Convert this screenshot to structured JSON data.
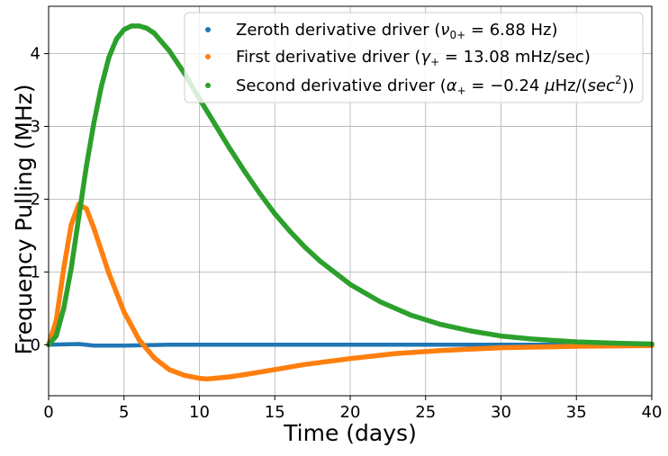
{
  "chart_data": {
    "type": "scatter",
    "xlabel": "Time (days)",
    "ylabel": "Frequency Pulling (MHz)",
    "xlim": [
      0,
      40
    ],
    "ylim": [
      -0.7,
      4.65
    ],
    "grid": true,
    "legend_position": "top-right",
    "x_ticks": [
      "0",
      "5",
      "10",
      "15",
      "20",
      "25",
      "30",
      "35",
      "40"
    ],
    "y_ticks": [
      "0",
      "1",
      "2",
      "3",
      "4"
    ],
    "series": [
      {
        "name": "Zeroth derivative driver (ν0+ = 6.88 Hz)",
        "legend_parts": [
          "Zeroth derivative driver (",
          "ν",
          "0+",
          " = 6.88 Hz)"
        ],
        "color": "#1f77b4",
        "x": [
          0,
          2,
          3,
          5,
          8,
          12,
          16,
          20,
          25,
          30,
          35,
          40
        ],
        "y": [
          0,
          0.01,
          -0.01,
          -0.01,
          0,
          0,
          0,
          0,
          0,
          0,
          0,
          0
        ]
      },
      {
        "name": "First derivative driver (γ+ = 13.08 mHz/sec)",
        "legend_parts": [
          "First derivative driver (",
          "γ",
          "+",
          " = 13.08 mHz/sec)"
        ],
        "color": "#ff7f0e",
        "x": [
          0,
          0.5,
          1,
          1.5,
          2,
          2.5,
          3,
          4,
          5,
          6,
          7,
          8,
          9,
          10,
          10.5,
          11,
          12,
          13,
          15,
          17,
          20,
          23,
          26,
          30,
          35,
          40
        ],
        "y": [
          0,
          0.33,
          1.05,
          1.65,
          1.93,
          1.87,
          1.6,
          0.98,
          0.45,
          0.07,
          -0.18,
          -0.34,
          -0.42,
          -0.46,
          -0.47,
          -0.46,
          -0.44,
          -0.41,
          -0.34,
          -0.27,
          -0.19,
          -0.12,
          -0.08,
          -0.04,
          -0.02,
          -0.01
        ]
      },
      {
        "name": "Second derivative driver (α+ = −0.24 μHz/(sec2))",
        "legend_parts": [
          "Second derivative driver (",
          "α",
          "+",
          " = −0.24 ",
          "μ",
          "Hz/(",
          "sec",
          "2",
          "))"
        ],
        "color": "#2ca02c",
        "x": [
          0,
          0.5,
          1,
          1.5,
          2,
          2.5,
          3,
          3.5,
          4,
          4.5,
          5,
          5.5,
          6,
          6.5,
          7,
          8,
          9,
          10,
          11,
          12,
          13,
          14,
          15,
          16,
          17,
          18,
          20,
          22,
          24,
          26,
          28,
          30,
          32,
          35,
          38,
          40
        ],
        "y": [
          0,
          0.12,
          0.5,
          1.05,
          1.75,
          2.45,
          3.05,
          3.55,
          3.95,
          4.2,
          4.33,
          4.38,
          4.38,
          4.35,
          4.28,
          4.04,
          3.73,
          3.38,
          3.04,
          2.7,
          2.38,
          2.08,
          1.8,
          1.56,
          1.34,
          1.15,
          0.83,
          0.59,
          0.41,
          0.28,
          0.19,
          0.12,
          0.08,
          0.04,
          0.02,
          0.01
        ]
      }
    ]
  }
}
